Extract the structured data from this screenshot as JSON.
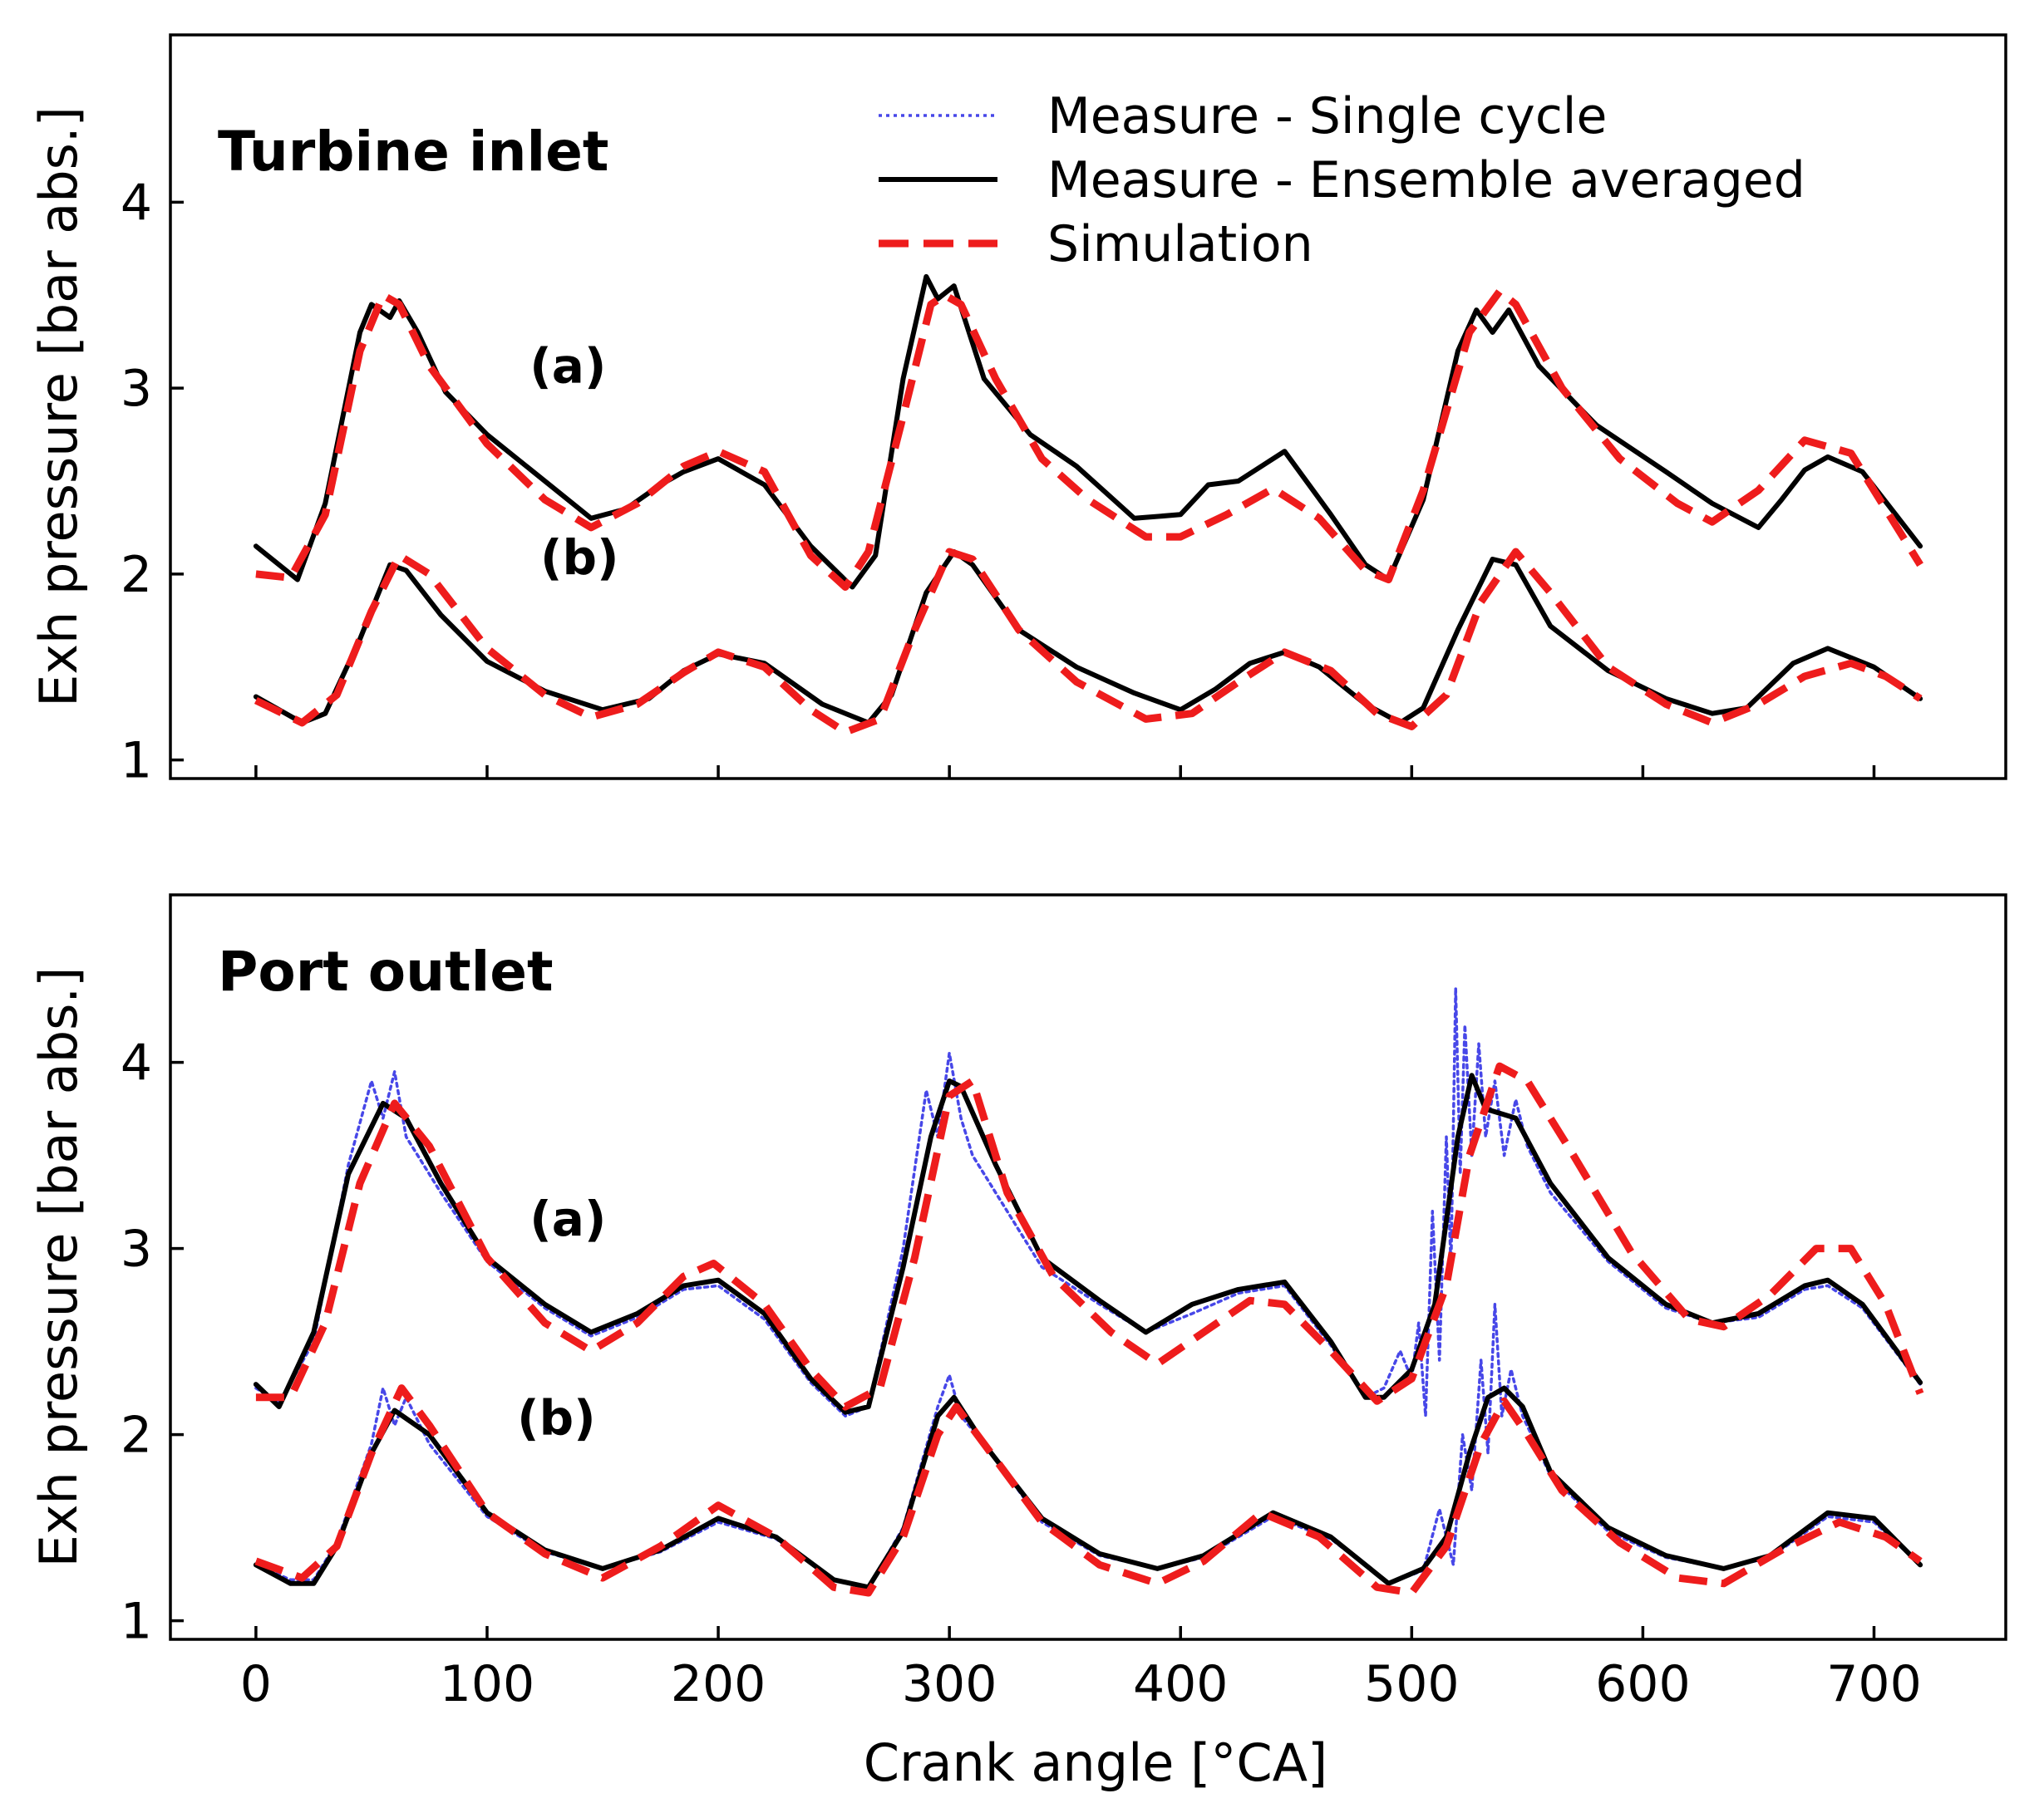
{
  "chart_data": [
    {
      "type": "line",
      "title": "Turbine inlet",
      "ylabel": "Exh pressure [bar abs.]",
      "xlabel": "",
      "xlim": [
        -37,
        757
      ],
      "ylim": [
        0.9,
        4.9
      ],
      "xticks": [
        0,
        100,
        200,
        300,
        400,
        500,
        600,
        700
      ],
      "xtick_labels": [
        "0",
        "100",
        "200",
        "300",
        "400",
        "500",
        "600",
        "700"
      ],
      "yticks": [
        1,
        2,
        3,
        4
      ],
      "ytick_labels": [
        "1",
        "2",
        "3",
        "4"
      ],
      "annotations": [
        {
          "text": "(a)",
          "x": 135,
          "y": 3.03
        },
        {
          "text": "(b)",
          "x": 140,
          "y": 2.0
        }
      ],
      "legend": {
        "position": "top-right",
        "entries": [
          "Measure - Single cycle",
          "Measure - Ensemble averaged",
          "Simulation"
        ]
      },
      "series": [
        {
          "name": "Measure - Ensemble averaged",
          "group": "(a)",
          "color": "#000000",
          "style": "solid",
          "x": [
            0,
            18,
            30,
            45,
            50,
            58,
            62,
            70,
            82,
            100,
            125,
            145,
            160,
            175,
            185,
            200,
            220,
            240,
            258,
            268,
            280,
            290,
            295,
            302,
            315,
            335,
            355,
            380,
            400,
            412,
            425,
            445,
            465,
            480,
            490,
            505,
            520,
            528,
            535,
            542,
            555,
            580,
            610,
            630,
            650,
            660,
            670,
            680,
            695,
            720
          ],
          "values": [
            2.15,
            1.97,
            2.38,
            3.3,
            3.45,
            3.38,
            3.47,
            3.3,
            2.98,
            2.75,
            2.5,
            2.3,
            2.35,
            2.48,
            2.55,
            2.62,
            2.48,
            2.15,
            1.93,
            2.1,
            3.05,
            3.6,
            3.48,
            3.55,
            3.05,
            2.75,
            2.58,
            2.3,
            2.32,
            2.48,
            2.5,
            2.66,
            2.32,
            2.05,
            1.97,
            2.4,
            3.2,
            3.42,
            3.3,
            3.42,
            3.12,
            2.8,
            2.55,
            2.38,
            2.25,
            2.4,
            2.56,
            2.63,
            2.55,
            2.15
          ]
        },
        {
          "name": "Simulation",
          "group": "(a)",
          "color": "#ee1c1c",
          "style": "dashed",
          "x": [
            0,
            15,
            30,
            45,
            55,
            62,
            75,
            100,
            125,
            145,
            165,
            185,
            200,
            220,
            240,
            255,
            265,
            280,
            292,
            298,
            305,
            320,
            340,
            360,
            385,
            400,
            420,
            440,
            460,
            480,
            490,
            505,
            525,
            538,
            545,
            565,
            590,
            615,
            630,
            650,
            670,
            690,
            705,
            720
          ],
          "values": [
            2.0,
            1.98,
            2.32,
            3.2,
            3.5,
            3.45,
            3.12,
            2.7,
            2.4,
            2.25,
            2.38,
            2.58,
            2.66,
            2.55,
            2.1,
            1.93,
            2.12,
            2.85,
            3.45,
            3.5,
            3.45,
            3.05,
            2.62,
            2.4,
            2.2,
            2.2,
            2.32,
            2.46,
            2.3,
            2.02,
            1.97,
            2.45,
            3.3,
            3.52,
            3.45,
            3.0,
            2.62,
            2.38,
            2.28,
            2.45,
            2.72,
            2.65,
            2.35,
            2.05
          ]
        },
        {
          "name": "Measure - Ensemble averaged",
          "group": "(b)",
          "color": "#000000",
          "style": "solid",
          "x": [
            0,
            20,
            30,
            45,
            58,
            65,
            80,
            100,
            125,
            150,
            170,
            185,
            200,
            220,
            245,
            265,
            275,
            290,
            302,
            310,
            330,
            355,
            380,
            400,
            415,
            430,
            445,
            460,
            480,
            495,
            505,
            520,
            535,
            545,
            560,
            585,
            610,
            630,
            645,
            665,
            680,
            700,
            720
          ],
          "values": [
            1.34,
            1.2,
            1.25,
            1.65,
            2.05,
            2.02,
            1.78,
            1.53,
            1.37,
            1.27,
            1.33,
            1.48,
            1.57,
            1.52,
            1.3,
            1.2,
            1.35,
            1.9,
            2.12,
            2.05,
            1.7,
            1.5,
            1.36,
            1.27,
            1.38,
            1.52,
            1.58,
            1.5,
            1.3,
            1.2,
            1.28,
            1.7,
            2.08,
            2.05,
            1.72,
            1.48,
            1.33,
            1.25,
            1.28,
            1.52,
            1.6,
            1.5,
            1.33
          ]
        },
        {
          "name": "Simulation",
          "group": "(b)",
          "color": "#ee1c1c",
          "style": "dashed",
          "x": [
            0,
            20,
            35,
            50,
            62,
            75,
            100,
            125,
            145,
            165,
            185,
            200,
            220,
            240,
            255,
            270,
            285,
            300,
            310,
            330,
            355,
            385,
            405,
            425,
            445,
            465,
            485,
            500,
            515,
            530,
            545,
            560,
            585,
            610,
            630,
            650,
            670,
            690,
            705,
            720
          ],
          "values": [
            1.32,
            1.2,
            1.35,
            1.8,
            2.1,
            2.0,
            1.6,
            1.35,
            1.23,
            1.3,
            1.47,
            1.58,
            1.5,
            1.27,
            1.15,
            1.22,
            1.7,
            2.12,
            2.08,
            1.7,
            1.42,
            1.22,
            1.25,
            1.42,
            1.58,
            1.48,
            1.25,
            1.18,
            1.35,
            1.85,
            2.12,
            1.9,
            1.5,
            1.3,
            1.2,
            1.3,
            1.45,
            1.52,
            1.45,
            1.33
          ]
        }
      ]
    },
    {
      "type": "line",
      "title": "Port outlet",
      "ylabel": "Exh pressure [bar abs.]",
      "xlabel": "Crank angle [°CA]",
      "xlim": [
        -37,
        757
      ],
      "ylim": [
        0.9,
        4.9
      ],
      "xticks": [
        0,
        100,
        200,
        300,
        400,
        500,
        600,
        700
      ],
      "xtick_labels": [
        "0",
        "100",
        "200",
        "300",
        "400",
        "500",
        "600",
        "700"
      ],
      "yticks": [
        1,
        2,
        3,
        4
      ],
      "ytick_labels": [
        "1",
        "2",
        "3",
        "4"
      ],
      "annotations": [
        {
          "text": "(a)",
          "x": 135,
          "y": 3.07
        },
        {
          "text": "(b)",
          "x": 130,
          "y": 2.0
        }
      ],
      "series": [
        {
          "name": "Measure - Ensemble averaged",
          "group": "(a)",
          "color": "#000000",
          "style": "solid",
          "x": [
            0,
            10,
            25,
            40,
            55,
            65,
            80,
            100,
            125,
            145,
            165,
            185,
            200,
            220,
            240,
            255,
            265,
            280,
            292,
            300,
            305,
            320,
            340,
            365,
            385,
            405,
            425,
            445,
            465,
            480,
            488,
            500,
            510,
            520,
            526,
            532,
            545,
            560,
            585,
            610,
            630,
            650,
            670,
            680,
            695,
            720
          ],
          "values": [
            2.27,
            2.15,
            2.55,
            3.4,
            3.78,
            3.7,
            3.35,
            2.95,
            2.7,
            2.55,
            2.65,
            2.8,
            2.83,
            2.65,
            2.3,
            2.12,
            2.15,
            2.9,
            3.6,
            3.9,
            3.87,
            3.45,
            2.95,
            2.72,
            2.55,
            2.7,
            2.78,
            2.82,
            2.5,
            2.2,
            2.2,
            2.35,
            2.7,
            3.6,
            3.93,
            3.75,
            3.7,
            3.35,
            2.95,
            2.7,
            2.6,
            2.65,
            2.8,
            2.83,
            2.7,
            2.28
          ]
        },
        {
          "name": "Measure - Single cycle",
          "group": "(a)",
          "color": "#4747e8",
          "style": "dotted",
          "x": [
            0,
            10,
            25,
            40,
            50,
            55,
            60,
            65,
            80,
            100,
            125,
            145,
            165,
            185,
            200,
            220,
            240,
            255,
            265,
            280,
            290,
            295,
            300,
            305,
            310,
            320,
            340,
            365,
            385,
            405,
            425,
            445,
            465,
            480,
            488,
            495,
            500,
            503,
            506,
            509,
            512,
            515,
            517,
            519,
            521,
            523,
            526,
            529,
            532,
            536,
            540,
            545,
            550,
            560,
            585,
            610,
            630,
            650,
            670,
            680,
            695,
            720
          ],
          "values": [
            2.25,
            2.17,
            2.5,
            3.45,
            3.9,
            3.7,
            3.95,
            3.6,
            3.3,
            2.93,
            2.68,
            2.53,
            2.63,
            2.78,
            2.8,
            2.62,
            2.28,
            2.1,
            2.15,
            3.0,
            3.85,
            3.6,
            4.05,
            3.7,
            3.5,
            3.3,
            2.9,
            2.7,
            2.55,
            2.65,
            2.76,
            2.8,
            2.48,
            2.2,
            2.25,
            2.45,
            2.3,
            2.6,
            2.1,
            3.2,
            2.4,
            3.6,
            2.9,
            4.4,
            3.4,
            4.2,
            3.5,
            4.1,
            3.6,
            3.9,
            3.5,
            3.8,
            3.55,
            3.3,
            2.93,
            2.68,
            2.6,
            2.63,
            2.78,
            2.8,
            2.68,
            2.27
          ]
        },
        {
          "name": "Simulation",
          "group": "(a)",
          "color": "#ee1c1c",
          "style": "dashed",
          "x": [
            0,
            15,
            30,
            45,
            60,
            75,
            100,
            125,
            145,
            165,
            185,
            198,
            220,
            240,
            255,
            270,
            285,
            300,
            310,
            325,
            345,
            370,
            390,
            410,
            430,
            445,
            465,
            485,
            500,
            515,
            525,
            538,
            550,
            570,
            595,
            620,
            635,
            655,
            675,
            690,
            705,
            720
          ],
          "values": [
            2.2,
            2.2,
            2.6,
            3.35,
            3.78,
            3.55,
            2.95,
            2.6,
            2.45,
            2.6,
            2.85,
            2.92,
            2.7,
            2.35,
            2.15,
            2.25,
            2.95,
            3.82,
            3.9,
            3.3,
            2.85,
            2.55,
            2.38,
            2.55,
            2.72,
            2.7,
            2.45,
            2.18,
            2.3,
            2.8,
            3.5,
            3.98,
            3.9,
            3.5,
            2.98,
            2.62,
            2.58,
            2.75,
            3.0,
            3.0,
            2.7,
            2.22
          ]
        },
        {
          "name": "Measure - Ensemble averaged",
          "group": "(b)",
          "color": "#000000",
          "style": "solid",
          "x": [
            0,
            15,
            25,
            35,
            50,
            60,
            75,
            100,
            125,
            150,
            175,
            200,
            225,
            250,
            265,
            280,
            295,
            302,
            315,
            340,
            365,
            390,
            410,
            440,
            465,
            490,
            505,
            515,
            525,
            533,
            540,
            548,
            560,
            585,
            610,
            635,
            655,
            680,
            700,
            720
          ],
          "values": [
            1.3,
            1.2,
            1.2,
            1.4,
            1.9,
            2.13,
            2.0,
            1.58,
            1.38,
            1.28,
            1.38,
            1.55,
            1.45,
            1.22,
            1.18,
            1.48,
            2.1,
            2.2,
            1.95,
            1.55,
            1.36,
            1.28,
            1.35,
            1.58,
            1.45,
            1.2,
            1.28,
            1.45,
            1.9,
            2.2,
            2.25,
            2.15,
            1.8,
            1.5,
            1.35,
            1.28,
            1.35,
            1.58,
            1.55,
            1.3
          ]
        },
        {
          "name": "Measure - Single cycle",
          "group": "(b)",
          "color": "#4747e8",
          "style": "dotted",
          "x": [
            0,
            15,
            25,
            35,
            50,
            55,
            60,
            65,
            75,
            100,
            125,
            150,
            175,
            200,
            225,
            250,
            265,
            280,
            295,
            300,
            305,
            315,
            340,
            365,
            390,
            410,
            440,
            465,
            490,
            505,
            512,
            518,
            522,
            526,
            530,
            533,
            536,
            539,
            543,
            548,
            560,
            585,
            610,
            635,
            655,
            680,
            700,
            720
          ],
          "values": [
            1.3,
            1.22,
            1.22,
            1.42,
            1.95,
            2.25,
            2.05,
            2.2,
            1.95,
            1.56,
            1.37,
            1.28,
            1.37,
            1.53,
            1.44,
            1.22,
            1.18,
            1.5,
            2.15,
            2.32,
            2.1,
            1.95,
            1.53,
            1.35,
            1.28,
            1.34,
            1.56,
            1.44,
            1.2,
            1.27,
            1.6,
            1.3,
            2.0,
            1.7,
            2.4,
            1.9,
            2.7,
            2.1,
            2.35,
            2.1,
            1.78,
            1.48,
            1.34,
            1.28,
            1.34,
            1.56,
            1.53,
            1.3
          ]
        },
        {
          "name": "Simulation",
          "group": "(b)",
          "color": "#ee1c1c",
          "style": "dashed",
          "x": [
            0,
            20,
            35,
            50,
            63,
            75,
            100,
            125,
            150,
            175,
            200,
            225,
            250,
            265,
            280,
            295,
            303,
            315,
            340,
            365,
            390,
            410,
            435,
            460,
            485,
            500,
            515,
            530,
            540,
            550,
            565,
            590,
            615,
            635,
            660,
            685,
            705,
            720
          ],
          "values": [
            1.32,
            1.23,
            1.4,
            1.9,
            2.25,
            2.05,
            1.58,
            1.36,
            1.23,
            1.4,
            1.62,
            1.45,
            1.18,
            1.15,
            1.45,
            2.0,
            2.15,
            1.95,
            1.53,
            1.3,
            1.2,
            1.32,
            1.58,
            1.45,
            1.18,
            1.15,
            1.4,
            1.95,
            2.18,
            2.0,
            1.7,
            1.42,
            1.23,
            1.2,
            1.38,
            1.53,
            1.45,
            1.32
          ]
        }
      ]
    }
  ]
}
